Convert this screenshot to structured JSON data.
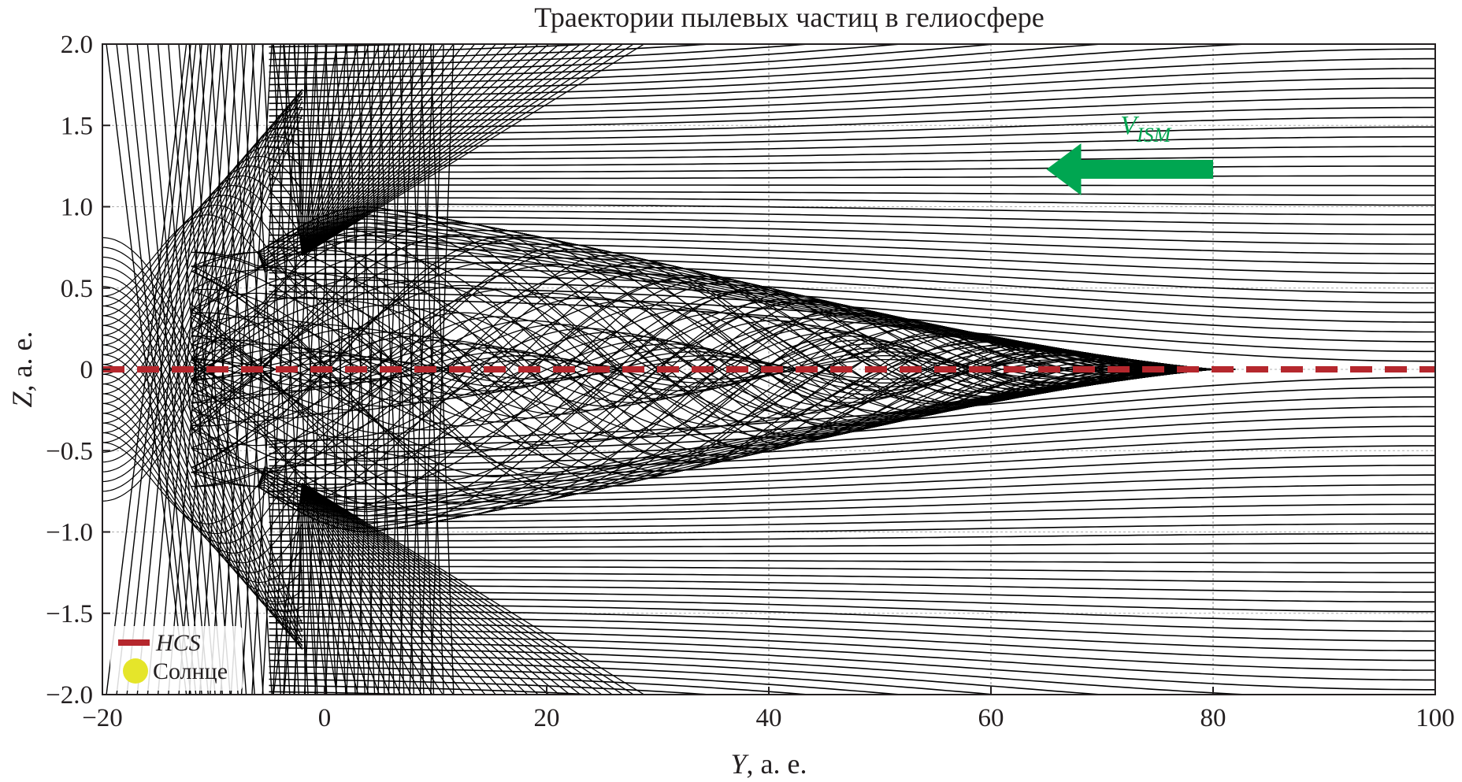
{
  "chart_data": {
    "type": "line",
    "title": "Траектории пылевых частиц в гелиосфере",
    "xlabel": {
      "italic": "Y",
      "rest": ", а. е."
    },
    "ylabel": {
      "italic": "Z",
      "rest": ", а. е."
    },
    "xlim": [
      -20,
      100
    ],
    "ylim": [
      -2.0,
      2.0
    ],
    "x_ticks": [
      -20,
      0,
      20,
      40,
      60,
      80,
      100
    ],
    "x_tick_labels": [
      "−20",
      "0",
      "20",
      "40",
      "60",
      "80",
      "100"
    ],
    "y_ticks": [
      2.0,
      1.5,
      1.0,
      0.5,
      0.0,
      -0.5,
      -1.0,
      -1.5,
      -2.0
    ],
    "y_tick_labels": [
      "2.0",
      "1.5",
      "1.0",
      "0.5",
      "0",
      "−0.5",
      "−1.0",
      "−1.5",
      "−2.0"
    ],
    "grid": {
      "vertical_at": [
        40,
        60,
        80
      ],
      "horizontal": true,
      "style": "dotted"
    },
    "series": [
      {
        "name": "HCS",
        "color": "#b5272d",
        "style": "dashed",
        "y": 0.0,
        "x_range": [
          -20,
          100
        ]
      }
    ],
    "trajectories": {
      "color": "#000000",
      "focus_y": 0.0,
      "max_envelope_z": 1.0,
      "envelope_peak_y": 4,
      "envelope_convergence_y": 80,
      "inflow_from": "+Y"
    },
    "legend": {
      "position": "bottom-left",
      "entries": [
        {
          "label": "HCS",
          "marker": "dashed-line",
          "color": "#b5272d",
          "italic": true
        },
        {
          "label": "Солнце",
          "marker": "circle",
          "color": "#e5e52a",
          "italic": false
        }
      ]
    },
    "annotation": {
      "label_main": "V",
      "label_sub": "ISM",
      "color": "#00a651",
      "arrow_from_y": 80,
      "arrow_to_y": 65,
      "arrow_z": 1.23
    }
  }
}
